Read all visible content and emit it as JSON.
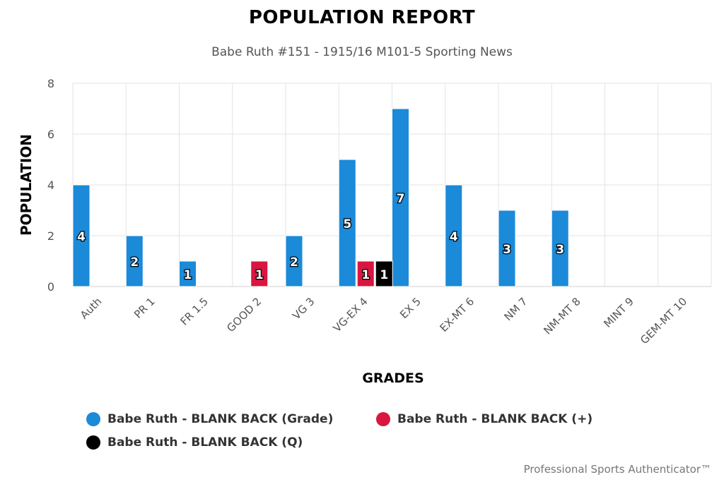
{
  "chart_data": {
    "type": "bar",
    "title": "POPULATION REPORT",
    "subtitle": "Babe Ruth #151 - 1915/16 M101-5 Sporting News",
    "xlabel": "GRADES",
    "ylabel": "POPULATION",
    "ylim": [
      0,
      8
    ],
    "yticks": [
      0,
      2,
      4,
      6,
      8
    ],
    "grid": true,
    "legend_position": "bottom",
    "categories": [
      "Auth",
      "PR 1",
      "FR 1.5",
      "GOOD 2",
      "VG 3",
      "VG-EX 4",
      "EX 5",
      "EX-MT 6",
      "NM 7",
      "NM-MT 8",
      "MINT 9",
      "GEM-MT 10"
    ],
    "series": [
      {
        "name": "Babe Ruth - BLANK BACK (Grade)",
        "color": "#1b8ad8",
        "values": [
          4,
          2,
          1,
          null,
          2,
          5,
          7,
          4,
          3,
          3,
          null,
          null
        ]
      },
      {
        "name": "Babe Ruth - BLANK BACK (+)",
        "color": "#d8163f",
        "values": [
          null,
          null,
          null,
          1,
          null,
          1,
          null,
          null,
          null,
          null,
          null,
          null
        ]
      },
      {
        "name": "Babe Ruth - BLANK BACK (Q)",
        "color": "#000000",
        "values": [
          null,
          null,
          null,
          null,
          null,
          1,
          null,
          null,
          null,
          null,
          null,
          null
        ]
      }
    ]
  },
  "footer": {
    "credit": "Professional Sports Authenticator™"
  }
}
